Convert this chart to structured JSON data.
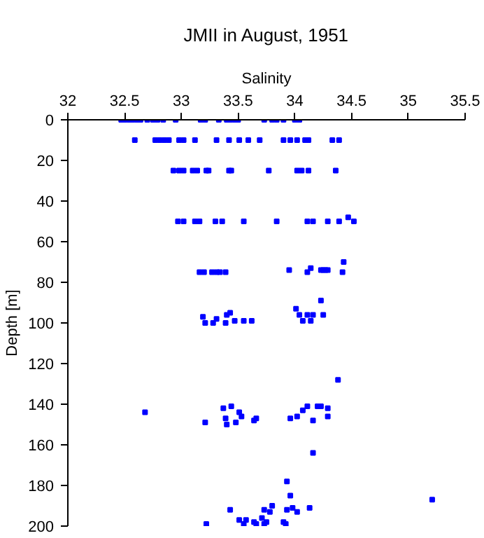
{
  "chart_data": {
    "type": "scatter",
    "title": "JMII in August, 1951",
    "xlabel": "Salinity",
    "ylabel": "Depth [m]",
    "xlim": [
      32,
      35.5
    ],
    "xticks": [
      32,
      32.5,
      33,
      33.5,
      34,
      34.5,
      35,
      35.5
    ],
    "ylim": [
      200,
      0
    ],
    "yticks": [
      0,
      20,
      40,
      60,
      80,
      100,
      120,
      140,
      160,
      180,
      200
    ],
    "marker": "square",
    "grid": false,
    "series": [
      {
        "color": "#0000ff",
        "x": [
          32.47,
          32.5,
          32.54,
          32.57,
          32.61,
          32.64,
          32.7,
          32.75,
          32.79,
          32.84,
          32.95,
          33.17,
          33.21,
          33.33,
          33.4,
          33.43,
          33.47,
          33.5,
          33.73,
          33.8,
          33.84,
          33.9,
          34.0,
          34.04,
          32.59,
          32.77,
          32.81,
          32.85,
          32.89,
          32.98,
          33.02,
          33.12,
          33.31,
          33.42,
          33.51,
          33.59,
          33.69,
          33.9,
          33.96,
          34.02,
          34.09,
          34.12,
          34.33,
          34.39,
          32.93,
          32.98,
          33.02,
          33.1,
          33.14,
          33.22,
          33.24,
          33.42,
          33.44,
          33.77,
          34.02,
          34.06,
          34.12,
          34.36,
          32.97,
          33.02,
          33.12,
          33.16,
          33.3,
          33.36,
          33.55,
          33.84,
          34.11,
          34.16,
          34.29,
          34.39,
          34.47,
          34.52,
          33.16,
          33.2,
          33.27,
          33.31,
          33.34,
          33.39,
          33.95,
          34.11,
          34.14,
          34.23,
          34.25,
          34.27,
          34.29,
          34.42,
          34.43,
          33.19,
          33.21,
          33.28,
          33.31,
          33.39,
          33.4,
          33.43,
          33.47,
          33.55,
          33.62,
          34.01,
          34.04,
          34.07,
          34.11,
          34.14,
          34.16,
          34.23,
          34.25,
          34.38,
          32.68,
          33.21,
          33.37,
          33.44,
          33.39,
          33.4,
          33.48,
          33.51,
          33.53,
          33.64,
          33.66,
          33.96,
          34.02,
          34.07,
          34.11,
          34.16,
          34.2,
          34.23,
          34.29,
          34.29,
          34.16,
          33.93,
          33.96,
          33.98,
          34.02,
          34.13,
          35.21,
          33.43,
          33.22,
          33.51,
          33.57,
          33.55,
          33.64,
          33.66,
          33.71,
          33.73,
          33.78,
          33.8,
          33.73,
          33.75,
          33.9,
          33.92,
          33.93
        ],
        "values": [
          0,
          0,
          0,
          0,
          0,
          0,
          0,
          0,
          0,
          0,
          0,
          0,
          0,
          0,
          0,
          0,
          0,
          0,
          0,
          0,
          0,
          0,
          0,
          0,
          10,
          10,
          10,
          10,
          10,
          10,
          10,
          10,
          10,
          10,
          10,
          10,
          10,
          10,
          10,
          10,
          10,
          10,
          10,
          10,
          25,
          25,
          25,
          25,
          25,
          25,
          25,
          25,
          25,
          25,
          25,
          25,
          25,
          25,
          50,
          50,
          50,
          50,
          50,
          50,
          50,
          50,
          50,
          50,
          50,
          50,
          48,
          50,
          75,
          75,
          75,
          75,
          75,
          75,
          74,
          75,
          73,
          74,
          74,
          74,
          74,
          75,
          70,
          97,
          100,
          100,
          98,
          100,
          96,
          95,
          99,
          99,
          99,
          93,
          96,
          99,
          96,
          99,
          96,
          89,
          96,
          128,
          144,
          149,
          142,
          141,
          147,
          150,
          149,
          144,
          146,
          148,
          147,
          147,
          146,
          143,
          141,
          148,
          141,
          141,
          142,
          146,
          164,
          178,
          185,
          191,
          193,
          191,
          187,
          192,
          199,
          197,
          197,
          199,
          198,
          199,
          196,
          192,
          193,
          190,
          199,
          198,
          198,
          199,
          192
        ]
      }
    ]
  }
}
